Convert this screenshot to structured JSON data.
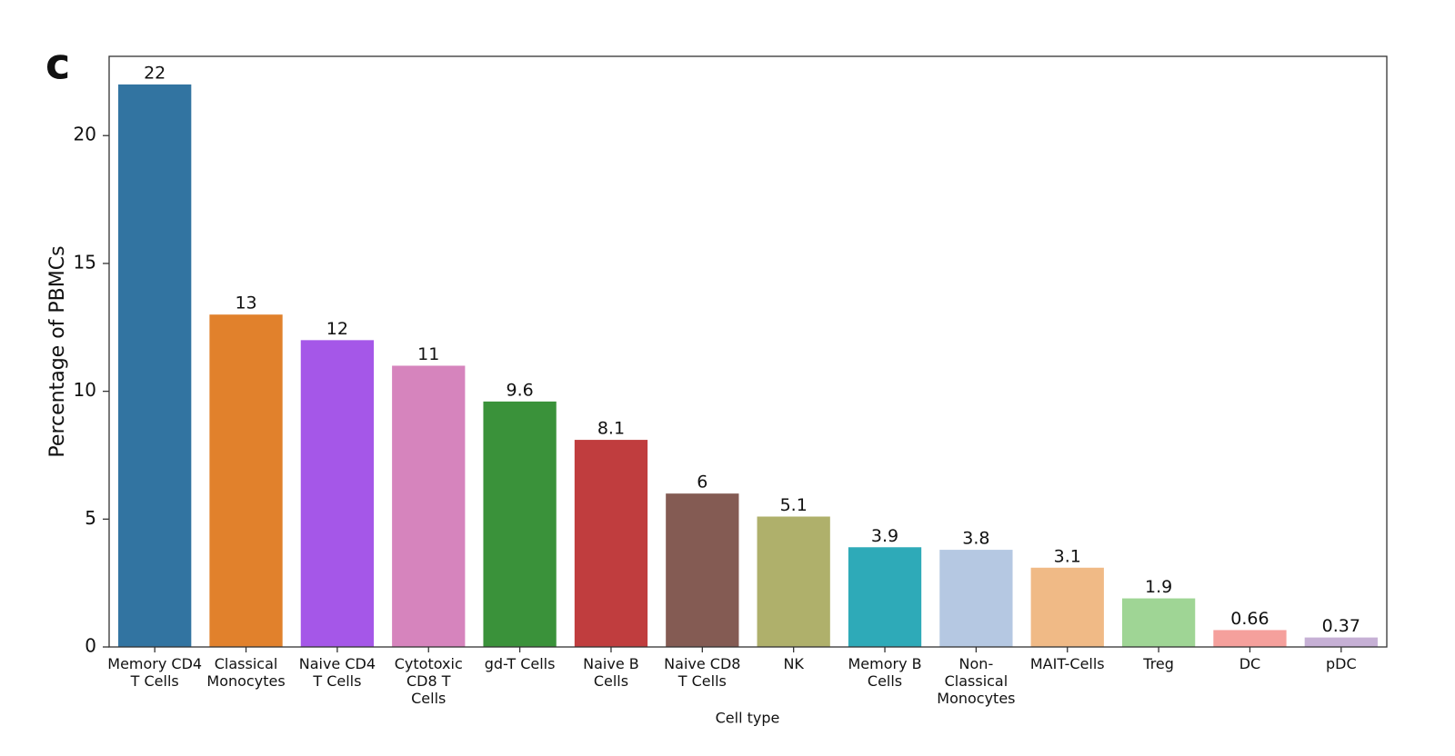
{
  "chart_data": {
    "type": "bar",
    "panel_label": "c",
    "ylabel": "Percentage of PBMCs",
    "xlabel": "Cell type",
    "categories": [
      "Memory CD4\nT Cells",
      "Classical\nMonocytes",
      "Naive CD4\nT Cells",
      "Cytotoxic\nCD8 T\nCells",
      "gd-T Cells",
      "Naive B\nCells",
      "Naive CD8\nT Cells",
      "NK",
      "Memory B\nCells",
      "Non-\nClassical\nMonocytes",
      "MAIT-Cells",
      "Treg",
      "DC",
      "pDC"
    ],
    "values": [
      22,
      13,
      12,
      11,
      9.6,
      8.1,
      6,
      5.1,
      3.9,
      3.8,
      3.1,
      1.9,
      0.66,
      0.37
    ],
    "colors": [
      "#3274a1",
      "#e1812c",
      "#a557e8",
      "#d684bd",
      "#3a923a",
      "#c03d3e",
      "#845b53",
      "#afb06b",
      "#2eaab8",
      "#b5c8e2",
      "#f0ba86",
      "#9fd595",
      "#f5a09c",
      "#c6b0d5"
    ],
    "ylim": [
      0,
      23.1
    ],
    "yticks": [
      0,
      5,
      10,
      15,
      20
    ],
    "grid": false
  }
}
